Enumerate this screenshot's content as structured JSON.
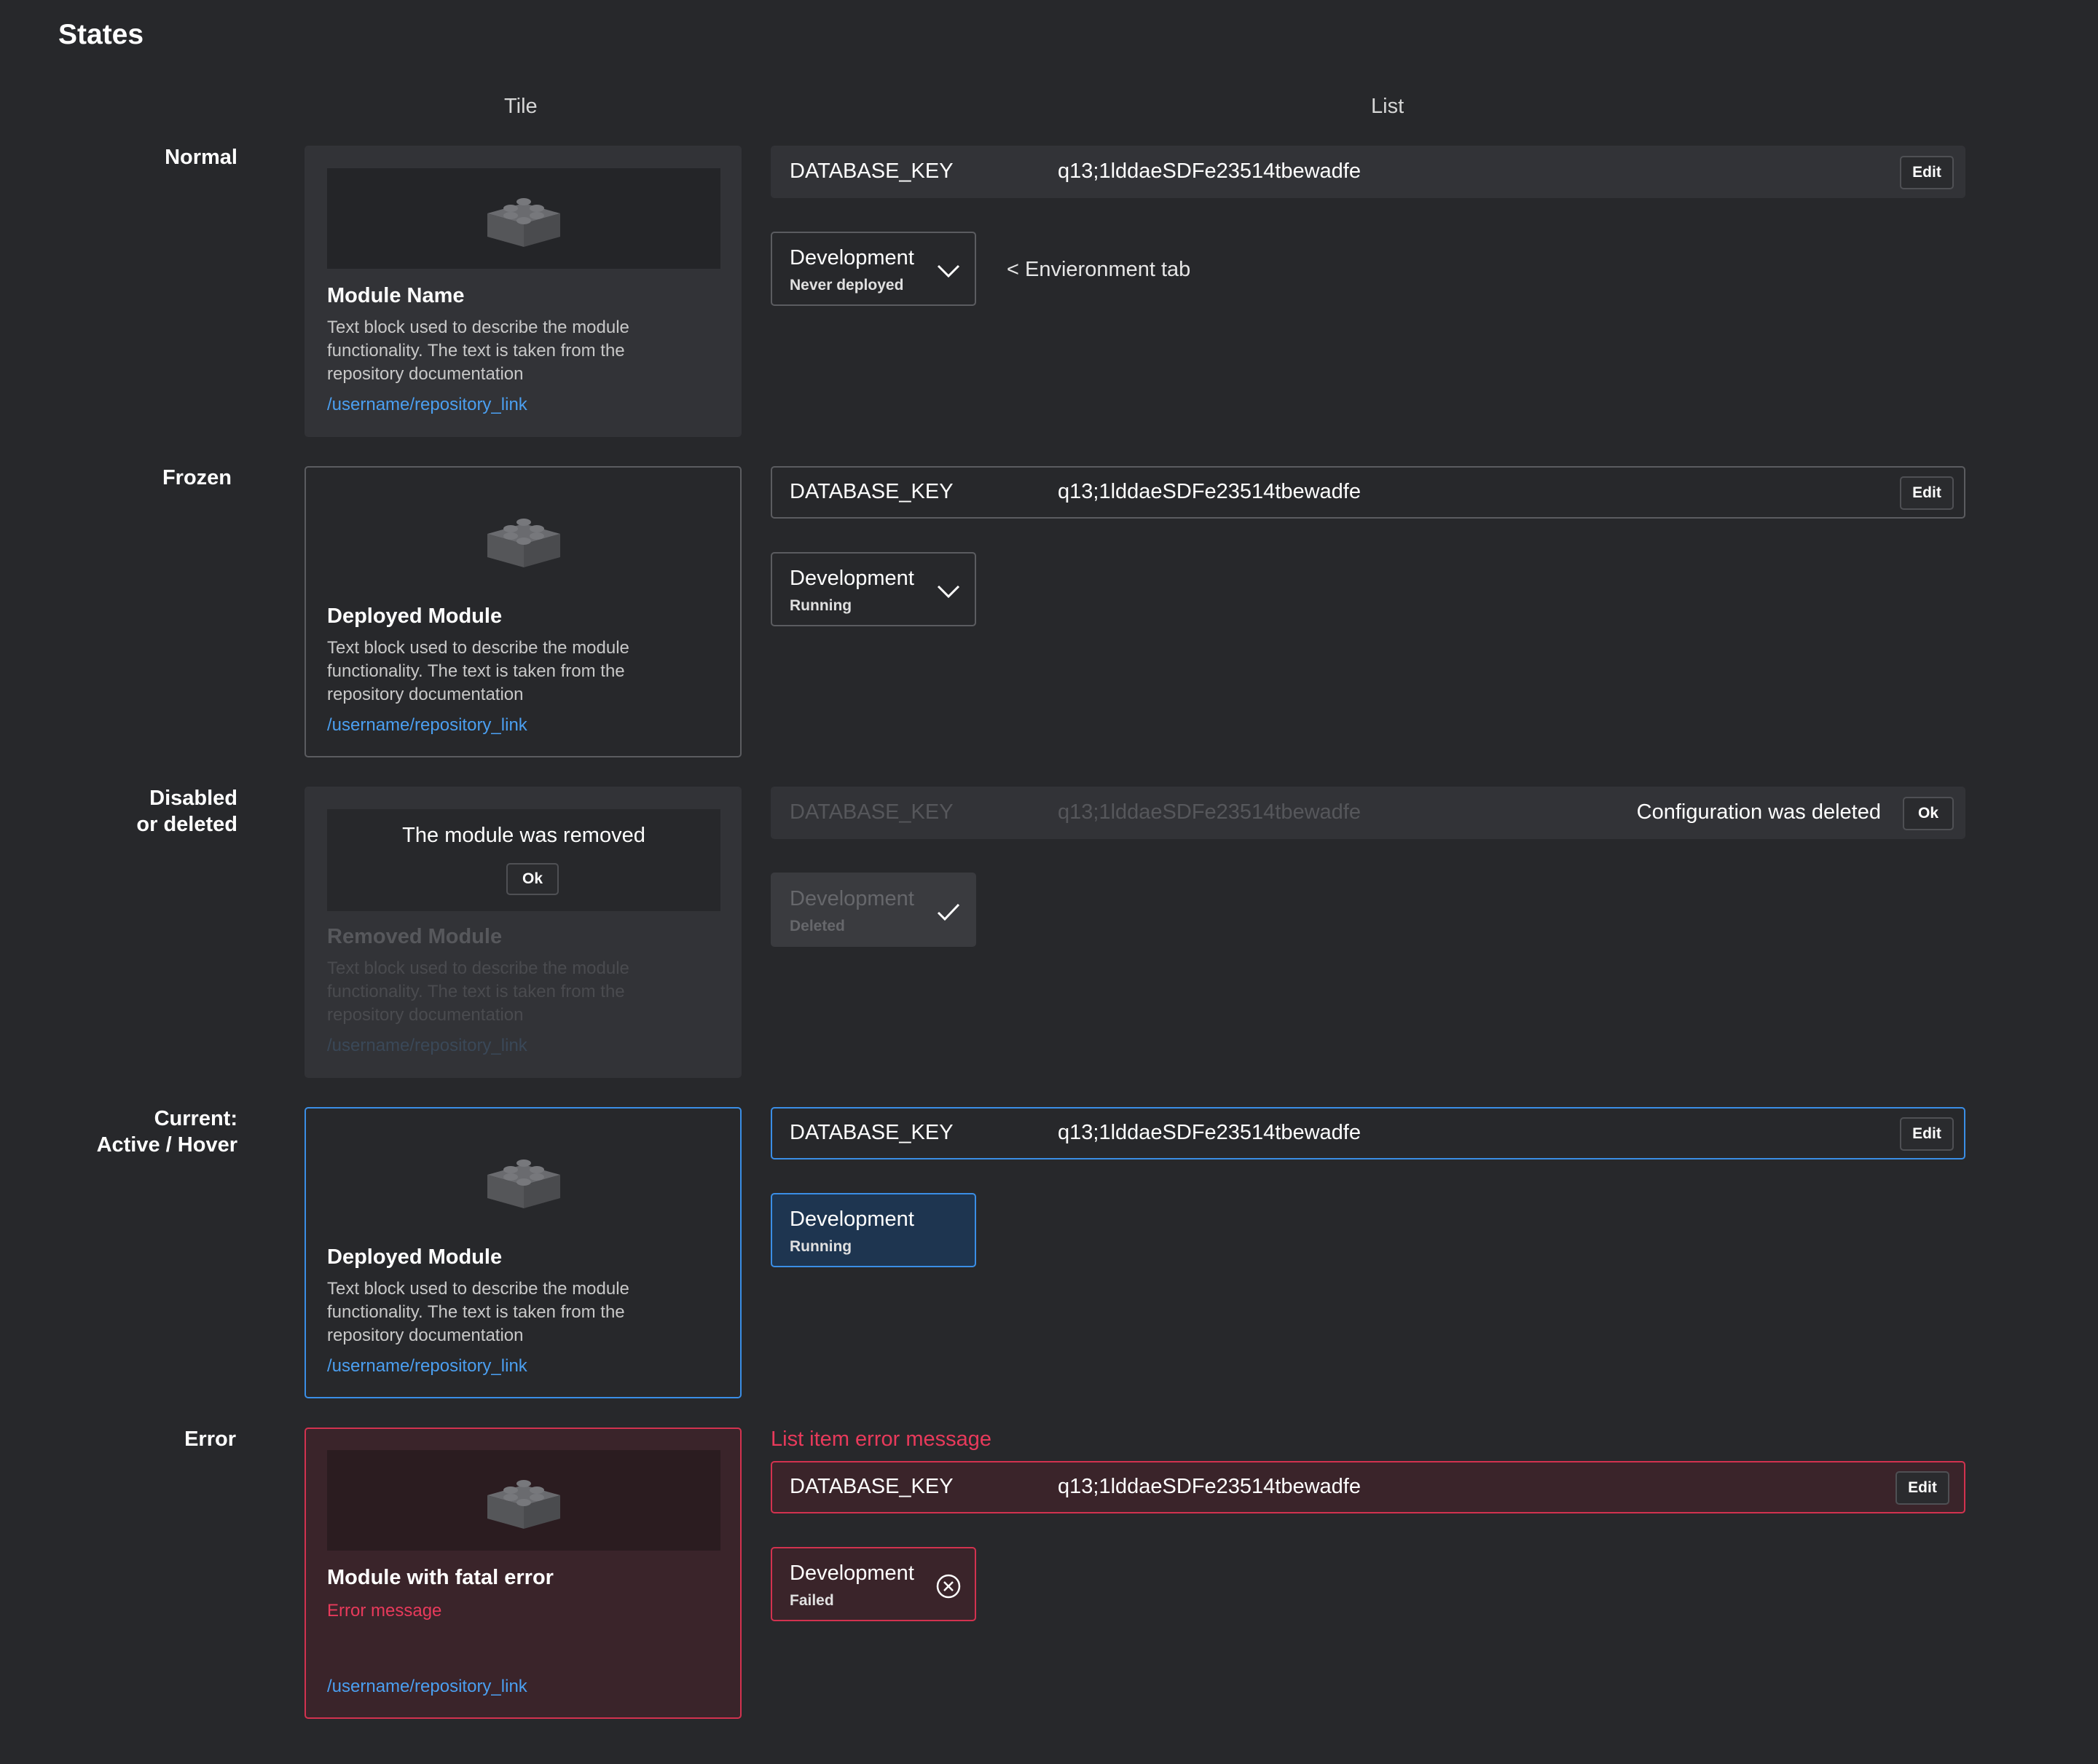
{
  "page": {
    "title": "States"
  },
  "columns": {
    "tile": "Tile",
    "list": "List"
  },
  "labels": {
    "normal": "Normal",
    "frozen": "Frozen",
    "disabled_1": "Disabled",
    "disabled_2": "or deleted",
    "current_1": "Current:",
    "current_2": "Active / Hover",
    "error": "Error"
  },
  "tiles": {
    "normal": {
      "title": "Module Name",
      "description": "Text block used to describe the module functionality. The text is taken from the repository documentation",
      "link": "/username/repository_link",
      "icon": "lego-brick-icon"
    },
    "frozen": {
      "title": "Deployed Module",
      "description": "Text block used to describe the module functionality. The text is taken from the repository documentation",
      "link": "/username/repository_link"
    },
    "disabled": {
      "removed_message": "The module was removed",
      "ok_label": "Ok",
      "title": "Removed Module",
      "description": "Text block used to describe the module functionality. The text is taken from the repository documentation",
      "link": "/username/repository_link"
    },
    "current": {
      "title": "Deployed Module",
      "description": "Text block used to describe the module functionality. The text is taken from the repository documentation",
      "link": "/username/repository_link"
    },
    "error": {
      "title": "Module with fatal error",
      "error_message": "Error message",
      "link": "/username/repository_link"
    }
  },
  "list_items": {
    "normal": {
      "key": "DATABASE_KEY",
      "value": "q13;1lddaeSDFe23514tbewadfe",
      "button": "Edit"
    },
    "frozen": {
      "key": "DATABASE_KEY",
      "value": "q13;1lddaeSDFe23514tbewadfe",
      "button": "Edit"
    },
    "disabled": {
      "key": "DATABASE_KEY",
      "value": "q13;1lddaeSDFe23514tbewadfe",
      "message": "Configuration was deleted",
      "button": "Ok"
    },
    "current": {
      "key": "DATABASE_KEY",
      "value": "q13;1lddaeSDFe23514tbewadfe",
      "button": "Edit"
    },
    "error": {
      "key": "DATABASE_KEY",
      "value": "q13;1lddaeSDFe23514tbewadfe",
      "button": "Edit",
      "error_message": "List item error message"
    }
  },
  "env_tabs": {
    "normal": {
      "name": "Development",
      "status": "Never deployed",
      "icon": "chevron-down-icon"
    },
    "frozen": {
      "name": "Development",
      "status": "Running",
      "icon": "chevron-down-icon"
    },
    "disabled": {
      "name": "Development",
      "status": "Deleted",
      "icon": "check-icon"
    },
    "current": {
      "name": "Development",
      "status": "Running"
    },
    "error": {
      "name": "Development",
      "status": "Failed",
      "icon": "close-circle-icon"
    }
  },
  "annotation": "< Envieronment tab",
  "colors": {
    "background": "#27282b",
    "accent": "#3a8ee6",
    "error": "#d2324f",
    "link": "#4b9ff0"
  }
}
